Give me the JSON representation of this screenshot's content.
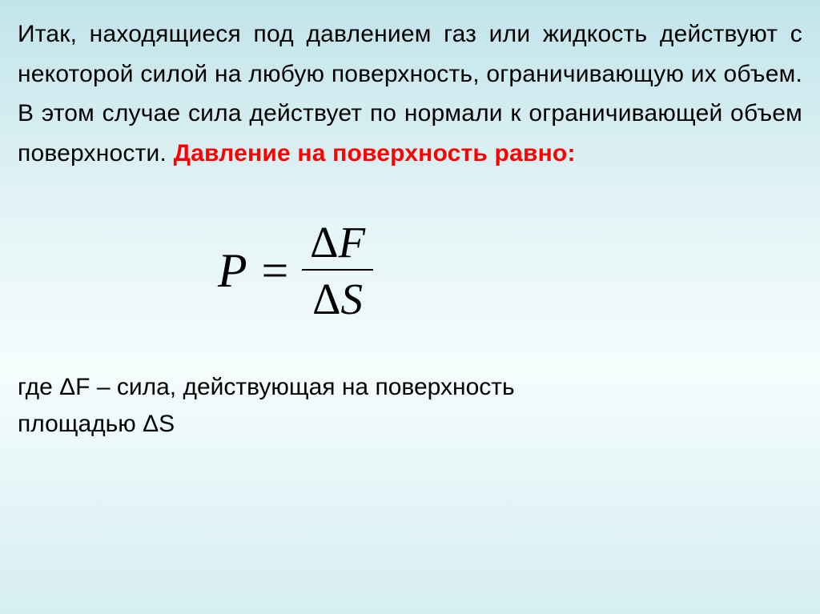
{
  "colors": {
    "bg_top": "#c1e4eb",
    "bg_mid": "#f5fcfc",
    "bg_bottom": "#d6eef2",
    "text": "#000000",
    "highlight": "#ff0000"
  },
  "typography": {
    "body_font": "Arial",
    "body_size_pt": 22,
    "formula_font": "Times New Roman",
    "formula_size_pt": 44
  },
  "intro": {
    "part1": "Итак, находящиеся под давлением газ или жидкость действуют с некоторой силой на любую поверхность, ограничивающую их объем. В этом случае сила действует по нормали к ограничивающей объем поверхности. ",
    "highlight": "Давление на поверхность равно:"
  },
  "formula": {
    "lhs": "P =",
    "numerator": "ΔF",
    "denominator": "ΔS"
  },
  "explain": {
    "line1": "где ΔF – сила, действующая на поверхность",
    "line2": "площадью ΔS"
  }
}
